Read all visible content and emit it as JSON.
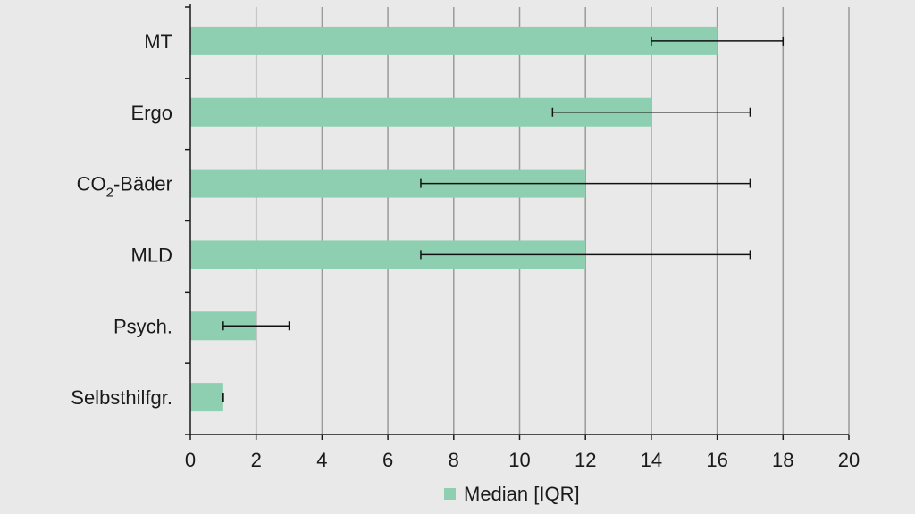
{
  "chart_data": {
    "type": "bar",
    "orientation": "horizontal",
    "categories": [
      "MT",
      "Ergo",
      "CO2-Bäder",
      "MLD",
      "Psych.",
      "Selbsthilfgr."
    ],
    "category_display": [
      {
        "main": "MT"
      },
      {
        "main": "Ergo"
      },
      {
        "main": "CO",
        "sub": "2",
        "after": "-Bäder"
      },
      {
        "main": "MLD"
      },
      {
        "main": "Psych."
      },
      {
        "main": "Selbsthilfgr."
      }
    ],
    "series": [
      {
        "name": "Median [IQR]",
        "values": [
          16,
          14,
          12,
          12,
          2,
          1
        ],
        "iqr_low": [
          14,
          11,
          7,
          7,
          1,
          1
        ],
        "iqr_high": [
          18,
          17,
          17,
          17,
          3,
          1
        ],
        "color": "#8ecfb2"
      }
    ],
    "xlim": [
      0,
      20
    ],
    "xticks": [
      0,
      2,
      4,
      6,
      8,
      10,
      12,
      14,
      16,
      18,
      20
    ],
    "grid": "vertical",
    "legend": {
      "position": "bottom-center",
      "label": "Median [IQR]"
    },
    "title": "",
    "xlabel": "",
    "ylabel": ""
  },
  "colors": {
    "background": "#e9e9e9",
    "bar": "#8ecfb2",
    "gridline": "#9a9a9a",
    "axis": "#1a1a1a",
    "errorbar": "#111111"
  }
}
